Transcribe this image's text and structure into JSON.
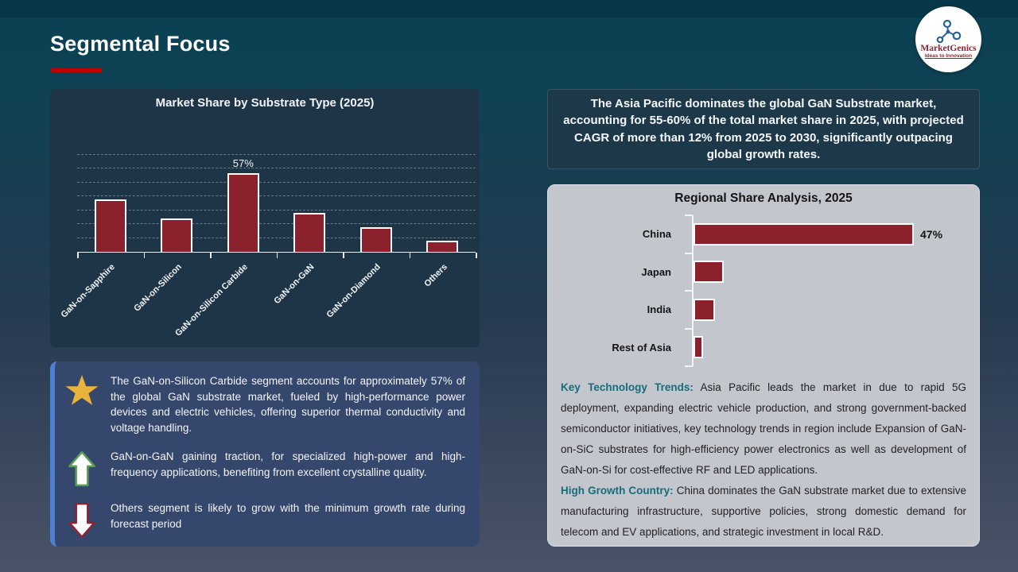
{
  "slide": {
    "title": "Segmental Focus",
    "logo": {
      "brand": "MarketGenics",
      "tagline": "Ideas to Innovation"
    }
  },
  "colors": {
    "accent_red": "#c00000",
    "bar_maroon": "#8b212c",
    "panel_dark": "#1e3447",
    "highlight_navy": "#1c3849",
    "panel_gray": "#c3c6cc",
    "insight_blue": "#35476c",
    "insight_accent": "#4c7fd3",
    "teal_heading": "#166d7d",
    "star_gold": "#e9b23b",
    "arrow_green": "#5a9e53",
    "arrow_maroon": "#8b2332"
  },
  "chart_data": [
    {
      "type": "bar",
      "orientation": "vertical",
      "title": "Market Share by Substrate Type (2025)",
      "categories": [
        "GaN-on-Sapphire",
        "GaN-on-Silicon",
        "GaN-on-Silicon Carbide",
        "GaN-on-GaN",
        "GaN-on-Diamond",
        "Others"
      ],
      "values": [
        38,
        24,
        57,
        28,
        18,
        8
      ],
      "data_labels": [
        "",
        "",
        "57%",
        "",
        "",
        ""
      ],
      "unit": "%",
      "ylim": [
        0,
        70
      ],
      "grid": "horizontal-dashed",
      "legend": "none"
    },
    {
      "type": "bar",
      "orientation": "horizontal",
      "title": "Regional Share Analysis, 2025",
      "categories": [
        "China",
        "Japan",
        "India",
        "Rest of Asia"
      ],
      "values": [
        47,
        6.5,
        4.5,
        2
      ],
      "data_labels": [
        "47%",
        "",
        "",
        ""
      ],
      "unit": "%",
      "xlim": [
        0,
        55
      ],
      "grid": "off",
      "legend": "none"
    }
  ],
  "highlight_box": {
    "text": "The Asia Pacific dominates the global GaN Substrate market, accounting for 55-60% of the total market share in 2025, with projected CAGR of more than 12% from 2025 to 2030, significantly outpacing global growth rates."
  },
  "insights": {
    "items": [
      {
        "icon": "star-icon",
        "text": "The GaN-on-Silicon Carbide segment accounts for approximately 57% of the global GaN substrate market, fueled by high-performance power devices and electric vehicles, offering superior thermal conductivity and voltage handling."
      },
      {
        "icon": "up-arrow-icon",
        "text": "GaN-on-GaN gaining traction, for specialized high-power and high-frequency applications, benefiting from excellent crystalline quality."
      },
      {
        "icon": "down-arrow-icon",
        "text": "Others segment is likely to grow with the minimum growth rate during forecast period"
      }
    ]
  },
  "regional_notes": {
    "paragraphs": [
      {
        "heading": "Key Technology Trends:",
        "body": " Asia Pacific leads the market in due to rapid 5G deployment, expanding electric vehicle production, and strong government-backed semiconductor initiatives, key technology trends in region include Expansion of GaN-on-SiC substrates for high-efficiency power electronics as well as development of GaN-on-Si for cost-effective RF and LED applications."
      },
      {
        "heading": "High Growth Country:",
        "body": " China dominates the GaN substrate market due to extensive manufacturing infrastructure, supportive policies, strong domestic demand for telecom and EV applications, and strategic investment in local R&D."
      }
    ]
  }
}
